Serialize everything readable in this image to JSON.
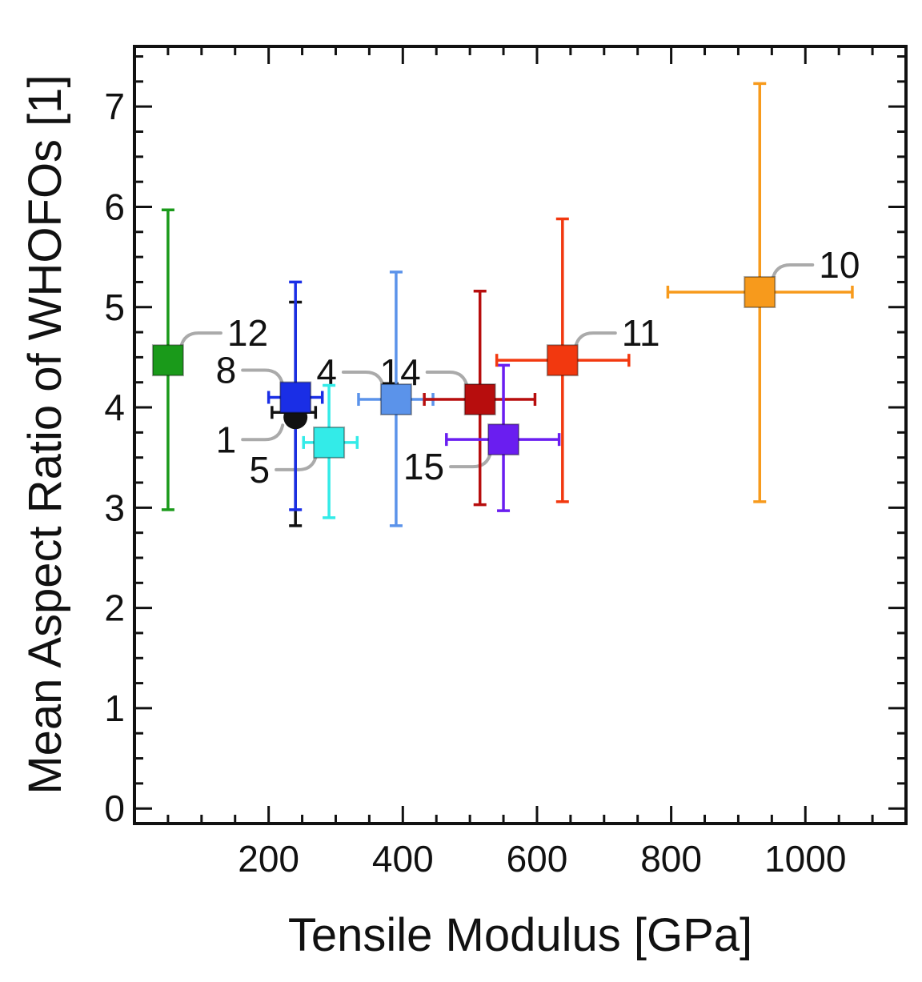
{
  "chart_data": {
    "type": "scatter",
    "title": "",
    "xlabel": "Tensile Modulus [GPa]",
    "ylabel": "Mean Aspect Ratio of WHOFOs [1]",
    "xlim": [
      0,
      1150
    ],
    "ylim": [
      -0.15,
      7.6
    ],
    "xticks": [
      200,
      400,
      600,
      800,
      1000
    ],
    "yticks": [
      0,
      1,
      2,
      3,
      4,
      5,
      6,
      7
    ],
    "grid": false,
    "points": [
      {
        "label": "12",
        "x": 50,
        "y": 4.47,
        "xerr": [
          50,
          50
        ],
        "yerr": [
          2.98,
          5.97
        ],
        "color": "#1a9a1a",
        "marker": "square",
        "label_dir": "ur"
      },
      {
        "label": "1",
        "x": 240,
        "y": 3.95,
        "xerr": [
          205,
          270
        ],
        "yerr": [
          2.82,
          5.05
        ],
        "color": "#111111",
        "marker": "circle",
        "label_dir": "ll"
      },
      {
        "label": "8",
        "x": 240,
        "y": 4.1,
        "xerr": [
          200,
          280
        ],
        "yerr": [
          2.98,
          5.25
        ],
        "color": "#1a2ee6",
        "marker": "square",
        "label_dir": "ul"
      },
      {
        "label": "5",
        "x": 290,
        "y": 3.65,
        "xerr": [
          252,
          332
        ],
        "yerr": [
          2.9,
          4.22
        ],
        "color": "#33ebe8",
        "marker": "square",
        "label_dir": "lr"
      },
      {
        "label": "4",
        "x": 390,
        "y": 4.08,
        "xerr": [
          334,
          445
        ],
        "yerr": [
          2.82,
          5.35
        ],
        "color": "#5b93ea",
        "marker": "square",
        "label_dir": "ul"
      },
      {
        "label": "14",
        "x": 515,
        "y": 4.08,
        "xerr": [
          432,
          597
        ],
        "yerr": [
          3.03,
          5.16
        ],
        "color": "#b70d0d",
        "marker": "square",
        "label_dir": "ul"
      },
      {
        "label": "15",
        "x": 550,
        "y": 3.68,
        "xerr": [
          465,
          633
        ],
        "yerr": [
          2.97,
          4.42
        ],
        "color": "#6a1ef0",
        "marker": "square",
        "label_dir": "ll"
      },
      {
        "label": "11",
        "x": 638,
        "y": 4.47,
        "xerr": [
          540,
          737
        ],
        "yerr": [
          3.06,
          5.88
        ],
        "color": "#f2380f",
        "marker": "square",
        "label_dir": "ur"
      },
      {
        "label": "10",
        "x": 932,
        "y": 5.15,
        "xerr": [
          795,
          1070
        ],
        "yerr": [
          3.06,
          7.23
        ],
        "color": "#f79a1c",
        "marker": "square",
        "label_dir": "ur"
      }
    ]
  }
}
